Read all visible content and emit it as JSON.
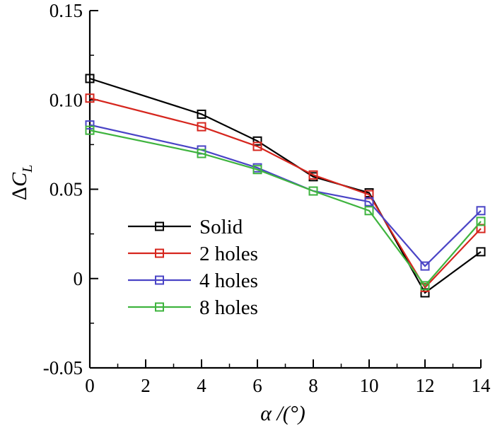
{
  "chart_data": {
    "type": "line",
    "title": "",
    "xlabel": "α /(°)",
    "ylabel": {
      "prefix": "Δ",
      "main": "C",
      "subscript": "L"
    },
    "xlim": [
      0,
      14
    ],
    "ylim": [
      -0.05,
      0.15
    ],
    "xticks": [
      "0",
      "2",
      "4",
      "6",
      "8",
      "10",
      "12",
      "14"
    ],
    "yticks": [
      "-0.05",
      "0",
      "0.05",
      "0.10",
      "0.15"
    ],
    "grid": false,
    "legend_position": "lower-left",
    "series": [
      {
        "name": "Solid",
        "color": "#000000",
        "x": [
          0,
          4,
          6,
          8,
          10,
          12,
          14
        ],
        "y": [
          0.112,
          0.092,
          0.077,
          0.057,
          0.048,
          -0.008,
          0.015
        ]
      },
      {
        "name": "2 holes",
        "color": "#d6261e",
        "x": [
          0,
          4,
          6,
          8,
          10,
          12,
          14
        ],
        "y": [
          0.101,
          0.085,
          0.074,
          0.058,
          0.047,
          -0.005,
          0.028
        ]
      },
      {
        "name": "4 holes",
        "color": "#4a44c6",
        "x": [
          0,
          4,
          6,
          8,
          10,
          12,
          14
        ],
        "y": [
          0.086,
          0.072,
          0.062,
          0.049,
          0.043,
          0.007,
          0.038
        ]
      },
      {
        "name": "8 holes",
        "color": "#3fb43f",
        "x": [
          0,
          4,
          6,
          8,
          10,
          12,
          14
        ],
        "y": [
          0.083,
          0.07,
          0.061,
          0.049,
          0.038,
          -0.004,
          0.032
        ]
      }
    ]
  }
}
